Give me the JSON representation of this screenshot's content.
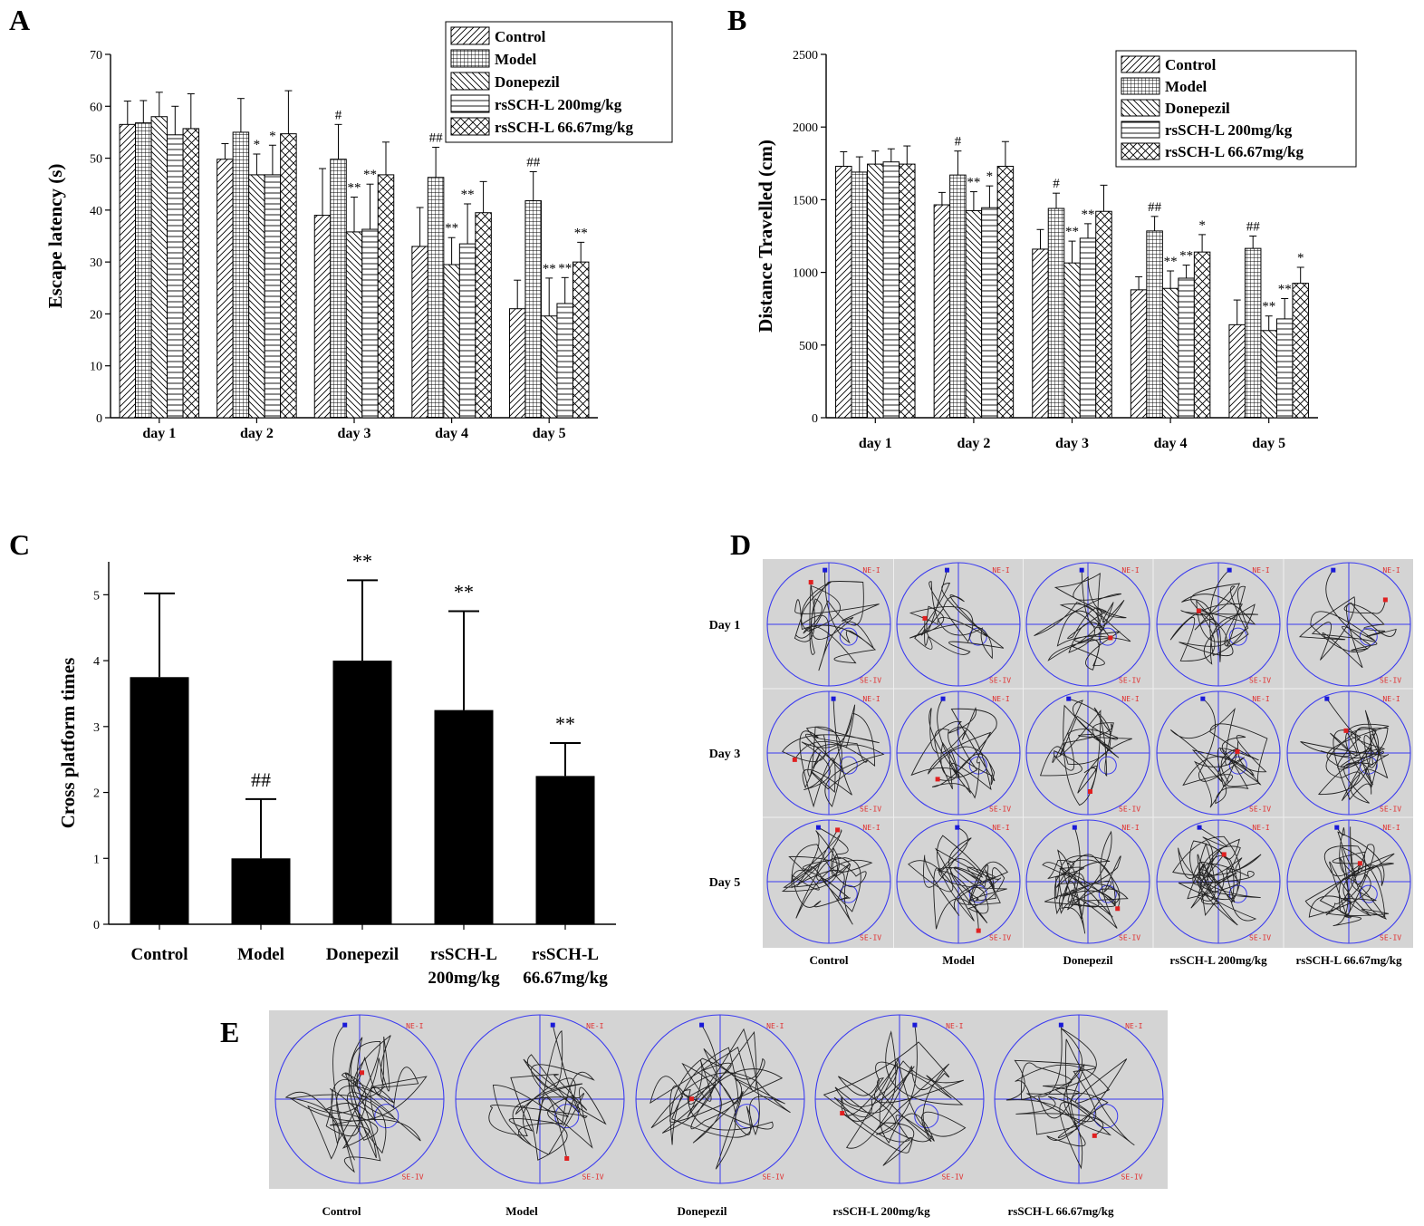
{
  "panels": {
    "a": "A",
    "b": "B",
    "c": "C",
    "d": "D",
    "e": "E"
  },
  "groups": [
    "Control",
    "Model",
    "Donepezil",
    "rsSCH-L 200mg/kg",
    "rsSCH-L 66.67mg/kg"
  ],
  "patterns": [
    "diag-right",
    "grid",
    "diag-left",
    "horizontal",
    "crosshatch"
  ],
  "chart_data": [
    {
      "panel": "A",
      "type": "bar",
      "ylabel": "Escape latency (s)",
      "xlabel": "",
      "ylim": [
        0,
        70
      ],
      "yticks": [
        0,
        10,
        20,
        30,
        40,
        50,
        60,
        70
      ],
      "categories": [
        "day 1",
        "day 2",
        "day 3",
        "day 4",
        "day 5"
      ],
      "legend_position": "top-right",
      "series": [
        {
          "name": "Control",
          "values": [
            56.5,
            49.8,
            39.0,
            33.0,
            21.0
          ],
          "errors": [
            4.5,
            3.0,
            9.0,
            7.5,
            5.5
          ],
          "marks": [
            "",
            "",
            "",
            "",
            ""
          ]
        },
        {
          "name": "Model",
          "values": [
            56.8,
            55.0,
            49.8,
            46.3,
            41.8
          ],
          "errors": [
            4.3,
            6.5,
            6.7,
            5.8,
            5.6
          ],
          "marks": [
            "",
            "",
            "#",
            "##",
            "##"
          ]
        },
        {
          "name": "Donepezil",
          "values": [
            58.0,
            46.8,
            35.8,
            29.5,
            19.6
          ],
          "errors": [
            4.7,
            4.0,
            6.7,
            5.2,
            7.3
          ],
          "marks": [
            "",
            "*",
            "**",
            "**",
            "**"
          ]
        },
        {
          "name": "rsSCH-L 200mg/kg",
          "values": [
            54.5,
            46.8,
            36.3,
            33.5,
            22.0
          ],
          "errors": [
            5.5,
            5.7,
            8.7,
            7.7,
            5.0
          ],
          "marks": [
            "",
            "*",
            "**",
            "**",
            "**"
          ]
        },
        {
          "name": "rsSCH-L 66.67mg/kg",
          "values": [
            55.7,
            54.7,
            46.8,
            39.5,
            30.0
          ],
          "errors": [
            6.7,
            8.3,
            6.3,
            6.0,
            3.8
          ],
          "marks": [
            "",
            "",
            "",
            "",
            "**"
          ]
        }
      ]
    },
    {
      "panel": "B",
      "type": "bar",
      "ylabel": "Distance Travelled (cm)",
      "xlabel": "",
      "ylim": [
        0,
        2500
      ],
      "yticks": [
        0,
        500,
        1000,
        1500,
        2000,
        2500
      ],
      "categories": [
        "day 1",
        "day 2",
        "day 3",
        "day 4",
        "day 5"
      ],
      "legend_position": "top-right",
      "series": [
        {
          "name": "Control",
          "values": [
            1730,
            1465,
            1160,
            880,
            640
          ],
          "errors": [
            100,
            85,
            135,
            90,
            170
          ],
          "marks": [
            "",
            "",
            "",
            "",
            ""
          ]
        },
        {
          "name": "Model",
          "values": [
            1690,
            1670,
            1440,
            1285,
            1165
          ],
          "errors": [
            105,
            165,
            105,
            100,
            85
          ],
          "marks": [
            "",
            "#",
            "#",
            "##",
            "##"
          ]
        },
        {
          "name": "Donepezil",
          "values": [
            1745,
            1425,
            1065,
            890,
            600
          ],
          "errors": [
            90,
            130,
            150,
            120,
            100
          ],
          "marks": [
            "",
            "**",
            "**",
            "**",
            "**"
          ]
        },
        {
          "name": "rsSCH-L 200mg/kg",
          "values": [
            1760,
            1445,
            1235,
            960,
            680
          ],
          "errors": [
            90,
            150,
            100,
            90,
            140
          ],
          "marks": [
            "",
            "*",
            "**",
            "**",
            "**"
          ]
        },
        {
          "name": "rsSCH-L 66.67mg/kg",
          "values": [
            1745,
            1730,
            1420,
            1140,
            925
          ],
          "errors": [
            125,
            170,
            180,
            120,
            110
          ],
          "marks": [
            "",
            "",
            "",
            "*",
            "*"
          ]
        }
      ]
    },
    {
      "panel": "C",
      "type": "bar",
      "ylabel": "Cross platform times",
      "xlabel": "",
      "ylim": [
        0,
        5.5
      ],
      "yticks": [
        0,
        1,
        2,
        3,
        4,
        5
      ],
      "categories": [
        "Control",
        "Model",
        "Donepezil",
        "rsSCH-L\n200mg/kg",
        "rsSCH-L\n66.67mg/kg"
      ],
      "values": [
        3.75,
        1.0,
        4.0,
        3.25,
        2.25
      ],
      "errors": [
        1.27,
        0.9,
        1.22,
        1.5,
        0.5
      ],
      "marks": [
        "",
        "##",
        "**",
        "**",
        "**"
      ]
    }
  ],
  "track_d": {
    "rows": [
      "Day 1",
      "Day 3",
      "Day 5"
    ],
    "columns": [
      "Control",
      "Model",
      "Donepezil",
      "rsSCH-L 200mg/kg",
      "rsSCH-L 66.67mg/kg"
    ],
    "quadrant_top": "NE-I",
    "quadrant_bottom": "SE-IV"
  },
  "track_e": {
    "columns": [
      "Control",
      "Model",
      "Donepezil",
      "rsSCH-L 200mg/kg",
      "rsSCH-L 66.67mg/kg"
    ],
    "quadrant_top": "NE-I",
    "quadrant_bottom": "SE-IV"
  },
  "colors": {
    "axis": "#000000",
    "bar_c": "#000000",
    "track_bg": "#d4d4d4",
    "pool": "#3a3af0",
    "start": "#1a1ad8",
    "end": "#e02020",
    "path": "#222222",
    "quad": "#e03030"
  }
}
